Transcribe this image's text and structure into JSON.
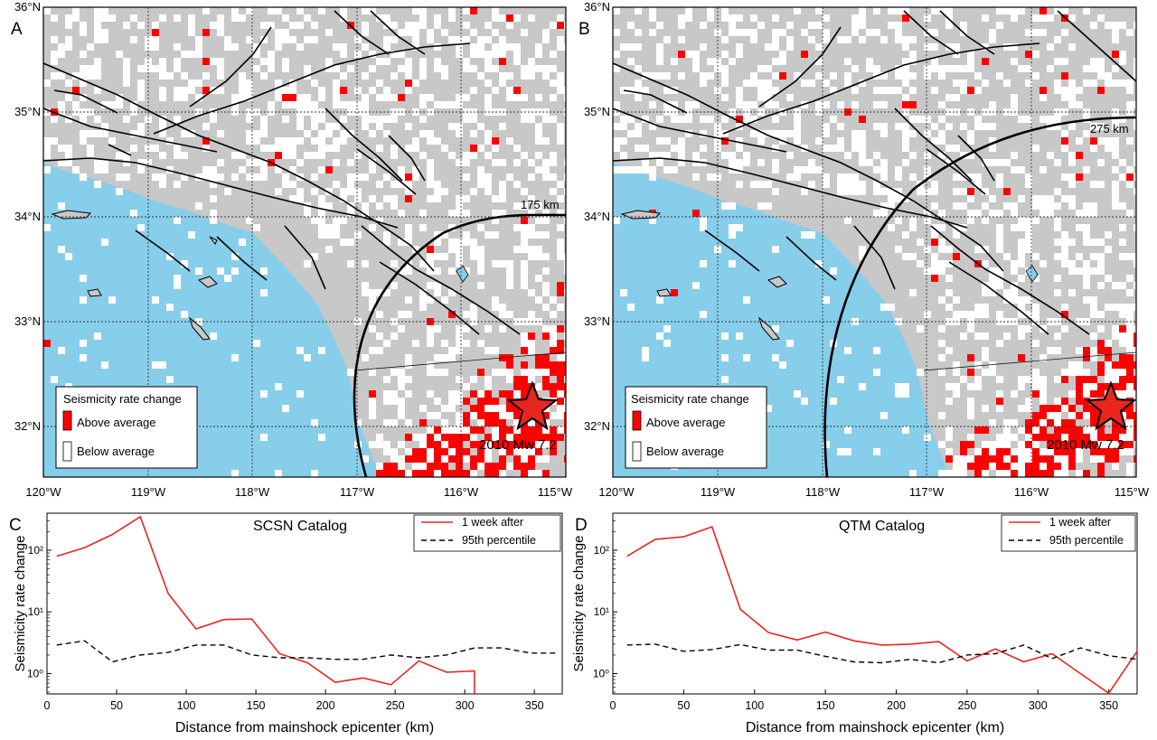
{
  "colors": {
    "ocean": "#87ceeb",
    "land": "#c8c8c8",
    "above": "#ff0000",
    "below": "#ffffff",
    "fault": "#000000",
    "curve_after": "#e8261f",
    "curve_p95": "#000000"
  },
  "maps": [
    {
      "panel_label": "A",
      "radius_label": "175 km",
      "event_label": "2010 Mw 7.2",
      "legend": {
        "title": "Seismicity rate change",
        "above": "Above average",
        "below": "Below average"
      }
    },
    {
      "panel_label": "B",
      "radius_label": "275 km",
      "event_label": "2010 Mw 7.2",
      "legend": {
        "title": "Seismicity rate change",
        "above": "Above average",
        "below": "Below average"
      }
    }
  ],
  "map_axes": {
    "lat_labels": [
      "36°N",
      "35°N",
      "34°N",
      "33°N",
      "32°N"
    ],
    "lon_labels": [
      "120°W",
      "119°W",
      "118°W",
      "117°W",
      "116°W",
      "115°W"
    ]
  },
  "chart_data": [
    {
      "type": "line",
      "panel_label": "C",
      "title": "SCSN Catalog",
      "xlabel": "Distance from mainshock epicenter (km)",
      "ylabel": "Seismicity rate change",
      "xlim": [
        0,
        370
      ],
      "ylim_log10": [
        -0.33,
        2.6
      ],
      "xticks": [
        "0",
        "50",
        "100",
        "150",
        "200",
        "250",
        "300",
        "350"
      ],
      "yticks": [
        "10⁰",
        "10¹",
        "10²"
      ],
      "legend": "top-right",
      "series": [
        {
          "name": "1 week after",
          "style": "solid",
          "x": [
            7,
            27,
            47,
            67,
            87,
            107,
            127,
            147,
            167,
            187,
            207,
            227,
            247,
            267,
            287,
            307,
            307
          ],
          "y": [
            80,
            110,
            180,
            350,
            20,
            5.3,
            7.5,
            7.7,
            2.1,
            1.5,
            0.72,
            0.85,
            0.66,
            1.6,
            1.05,
            1.1,
            0.45
          ]
        },
        {
          "name": "95th percentile",
          "style": "dashed",
          "x": [
            7,
            27,
            47,
            67,
            87,
            107,
            127,
            147,
            167,
            187,
            207,
            227,
            247,
            267,
            287,
            307,
            327,
            347,
            367
          ],
          "y": [
            2.9,
            3.4,
            1.55,
            2.0,
            2.2,
            2.9,
            2.9,
            2.0,
            1.8,
            1.8,
            1.7,
            1.7,
            2.0,
            1.8,
            2.0,
            2.6,
            2.6,
            2.15,
            2.15
          ]
        }
      ]
    },
    {
      "type": "line",
      "panel_label": "D",
      "title": "QTM Catalog",
      "xlabel": "Distance from mainshock epicenter (km)",
      "ylabel": "Seismicity rate change",
      "xlim": [
        0,
        370
      ],
      "ylim_log10": [
        -0.33,
        2.6
      ],
      "xticks": [
        "0",
        "50",
        "100",
        "150",
        "200",
        "250",
        "300",
        "350"
      ],
      "yticks": [
        "10⁰",
        "10¹",
        "10²"
      ],
      "legend": "top-right",
      "series": [
        {
          "name": "1 week after",
          "style": "solid",
          "x": [
            10,
            30,
            50,
            70,
            90,
            110,
            130,
            150,
            170,
            190,
            210,
            230,
            250,
            270,
            290,
            310,
            330,
            350,
            370
          ],
          "y": [
            80,
            150,
            165,
            240,
            11,
            4.6,
            3.5,
            4.7,
            3.4,
            2.9,
            3.0,
            3.3,
            1.6,
            2.5,
            1.55,
            2.1,
            1.0,
            0.48,
            2.3
          ]
        },
        {
          "name": "95th percentile",
          "style": "dashed",
          "x": [
            10,
            30,
            50,
            70,
            90,
            110,
            130,
            150,
            170,
            190,
            210,
            230,
            250,
            270,
            290,
            310,
            330,
            350,
            370
          ],
          "y": [
            2.9,
            3.0,
            2.3,
            2.45,
            2.95,
            2.4,
            2.4,
            1.9,
            1.55,
            1.5,
            1.7,
            1.5,
            2.0,
            2.1,
            2.9,
            1.75,
            2.6,
            1.95,
            1.7
          ]
        }
      ]
    }
  ]
}
